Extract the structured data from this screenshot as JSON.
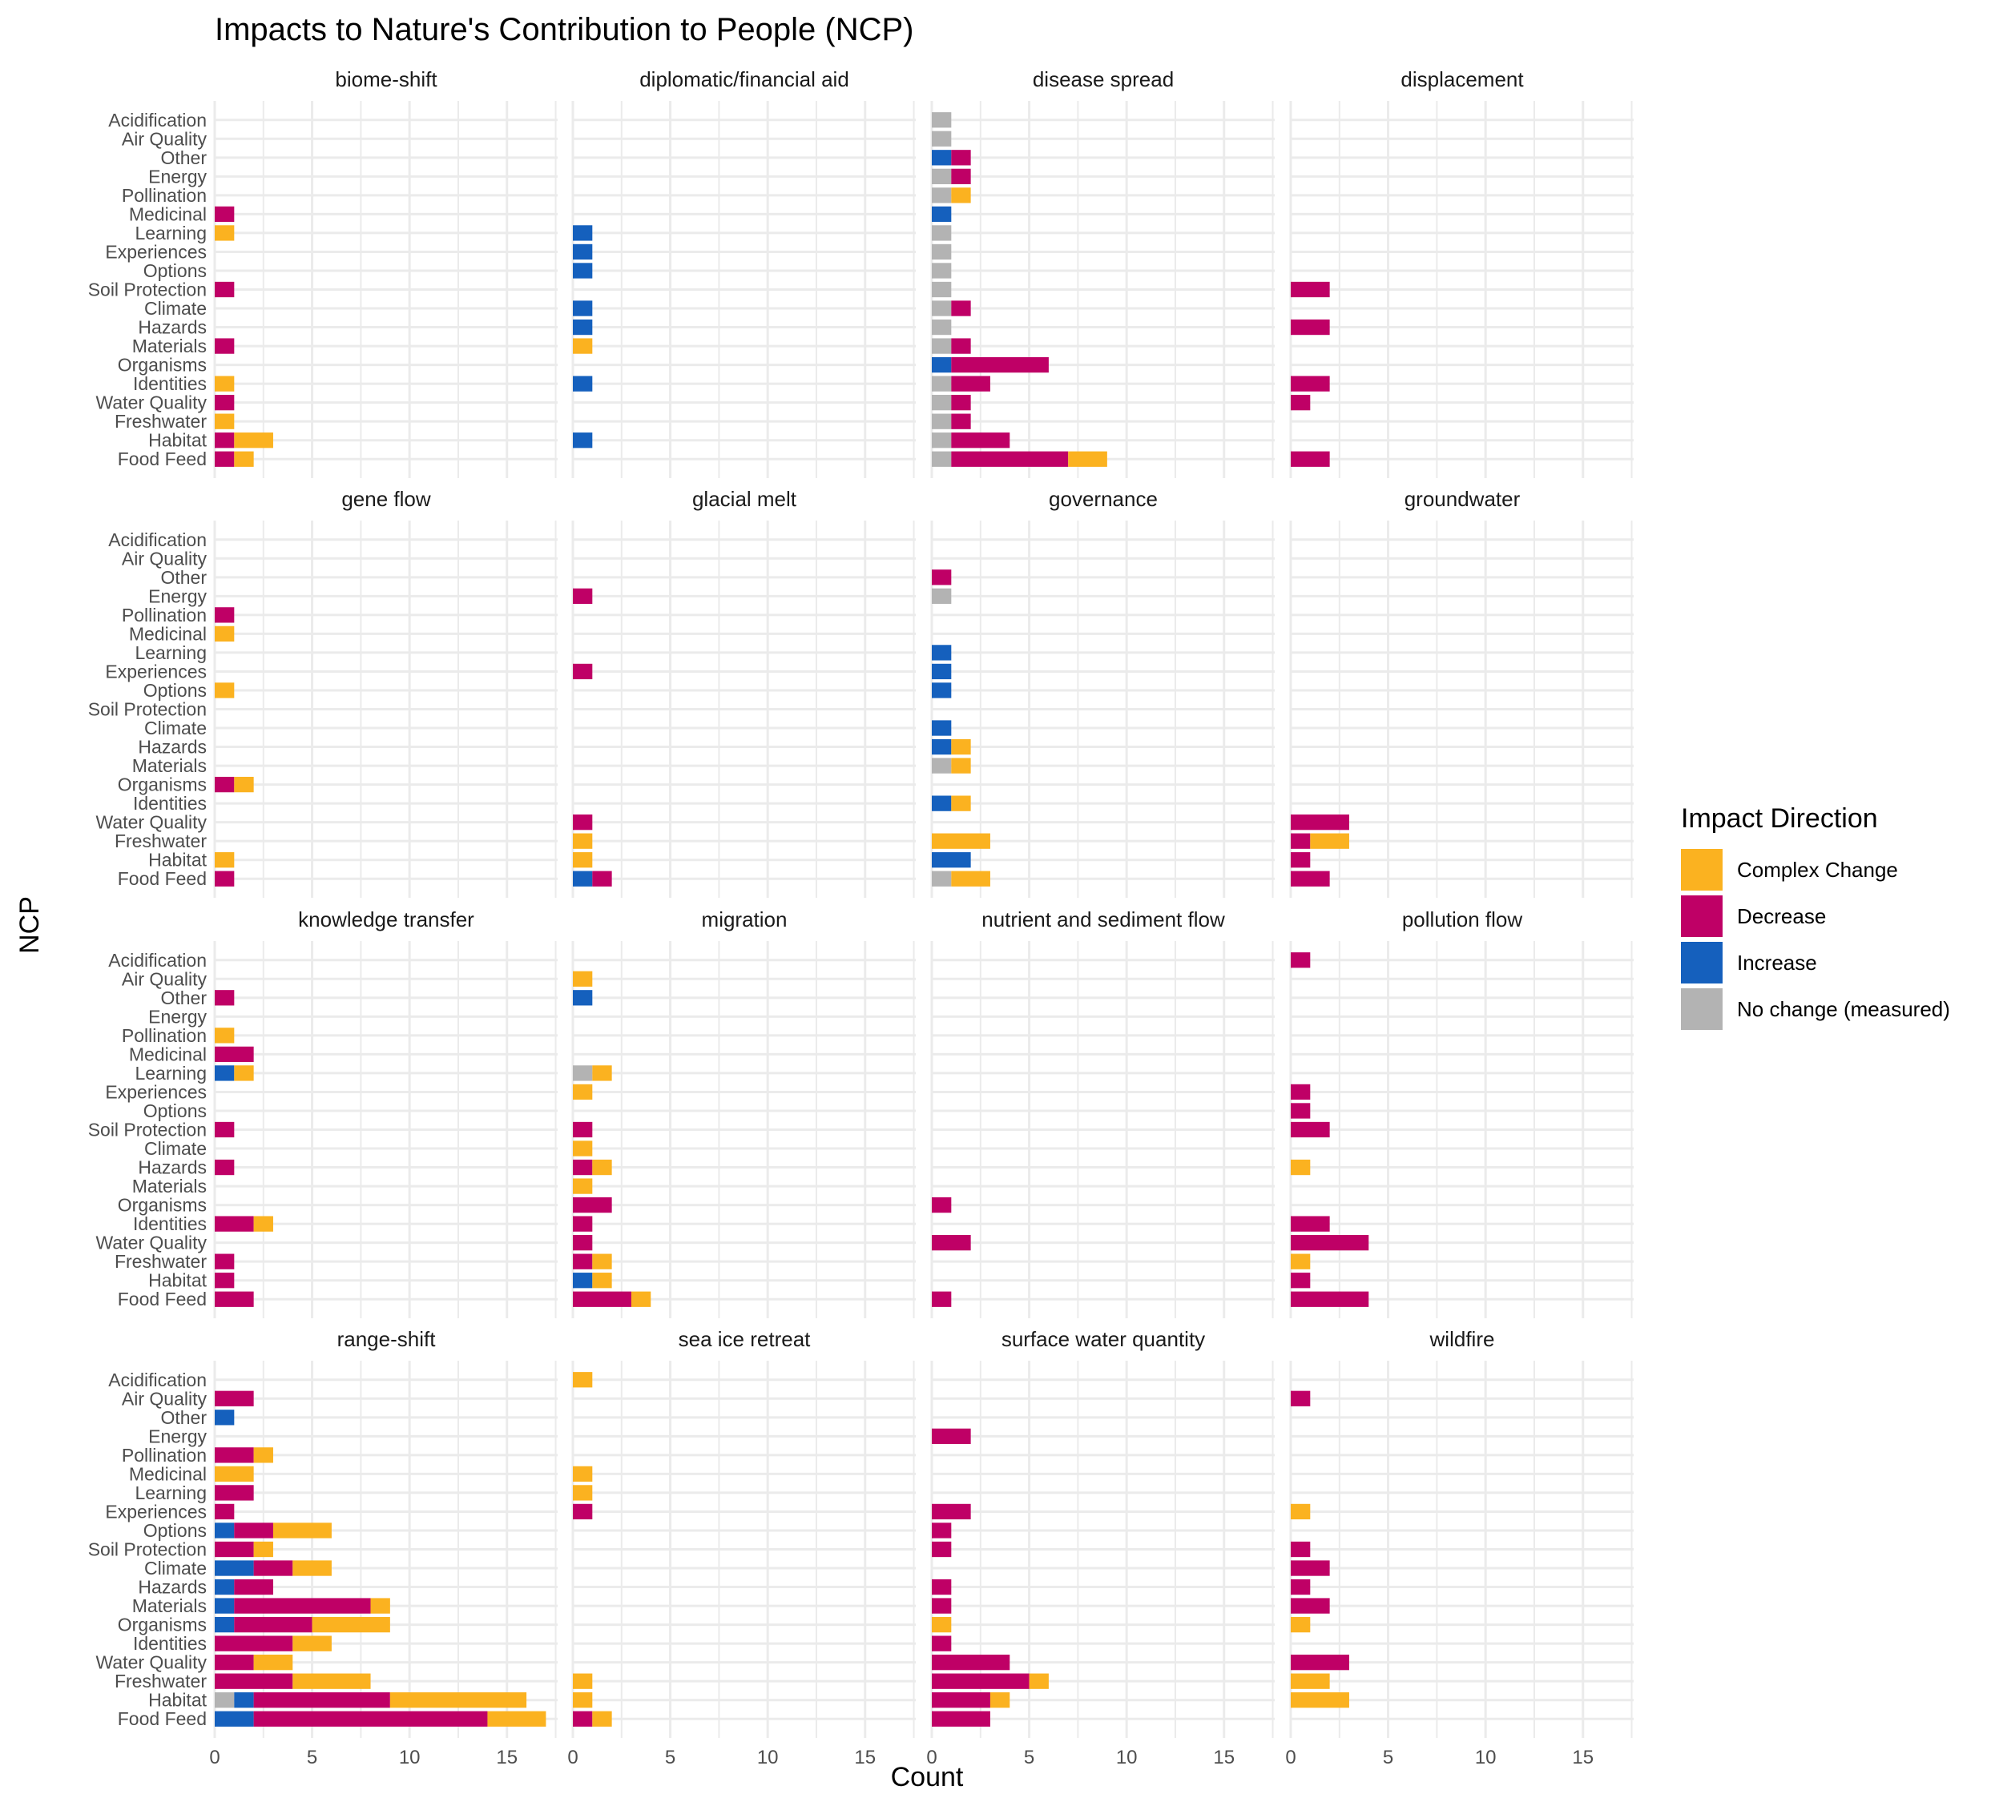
{
  "title": "Impacts to Nature's Contribution to People (NCP)",
  "chart_data": {
    "type": "bar",
    "orientation": "horizontal",
    "stacked": true,
    "faceted": true,
    "title": "Impacts to Nature's Contribution to People (NCP)",
    "xlabel": "Count",
    "ylabel": "NCP",
    "xlim": [
      0,
      17.6
    ],
    "xticks": [
      0,
      5,
      10,
      15
    ],
    "grid": true,
    "legend_position": "right",
    "legend_title": "Impact Direction",
    "categories": [
      "Acidification",
      "Air Quality",
      "Other",
      "Energy",
      "Pollination",
      "Medicinal",
      "Learning",
      "Experiences",
      "Options",
      "Soil Protection",
      "Climate",
      "Hazards",
      "Materials",
      "Organisms",
      "Identities",
      "Water Quality",
      "Freshwater",
      "Habitat",
      "Food Feed"
    ],
    "series": [
      {
        "name": "No change (measured)",
        "color": "#b3b3b3"
      },
      {
        "name": "Increase",
        "color": "#1560bd"
      },
      {
        "name": "Decrease",
        "color": "#bf0066"
      },
      {
        "name": "Complex Change",
        "color": "#fbb220"
      }
    ],
    "legend_order": [
      "Complex Change",
      "Decrease",
      "Increase",
      "No change (measured)"
    ],
    "segment_order": [
      "No change (measured)",
      "Increase",
      "Decrease",
      "Complex Change"
    ],
    "facets": [
      {
        "name": "biome-shift",
        "data": {
          "Medicinal": {
            "Decrease": 1
          },
          "Learning": {
            "Complex Change": 1
          },
          "Soil Protection": {
            "Decrease": 1
          },
          "Materials": {
            "Decrease": 1
          },
          "Identities": {
            "Complex Change": 1
          },
          "Water Quality": {
            "Decrease": 1
          },
          "Freshwater": {
            "Complex Change": 1
          },
          "Habitat": {
            "Decrease": 1,
            "Complex Change": 2
          },
          "Food Feed": {
            "Decrease": 1,
            "Complex Change": 1
          }
        }
      },
      {
        "name": "diplomatic/financial aid",
        "data": {
          "Learning": {
            "Increase": 1
          },
          "Experiences": {
            "Increase": 1
          },
          "Options": {
            "Increase": 1
          },
          "Climate": {
            "Increase": 1
          },
          "Hazards": {
            "Increase": 1
          },
          "Materials": {
            "Complex Change": 1
          },
          "Identities": {
            "Increase": 1
          },
          "Habitat": {
            "Increase": 1
          }
        }
      },
      {
        "name": "disease spread",
        "data": {
          "Acidification": {
            "No change (measured)": 1
          },
          "Air Quality": {
            "No change (measured)": 1
          },
          "Other": {
            "Increase": 1,
            "Decrease": 1
          },
          "Energy": {
            "No change (measured)": 1,
            "Decrease": 1
          },
          "Pollination": {
            "No change (measured)": 1,
            "Complex Change": 1
          },
          "Medicinal": {
            "Increase": 1
          },
          "Learning": {
            "No change (measured)": 1
          },
          "Experiences": {
            "No change (measured)": 1
          },
          "Options": {
            "No change (measured)": 1
          },
          "Soil Protection": {
            "No change (measured)": 1
          },
          "Climate": {
            "No change (measured)": 1,
            "Decrease": 1
          },
          "Hazards": {
            "No change (measured)": 1
          },
          "Materials": {
            "No change (measured)": 1,
            "Decrease": 1
          },
          "Organisms": {
            "Increase": 1,
            "Decrease": 5
          },
          "Identities": {
            "No change (measured)": 1,
            "Decrease": 2
          },
          "Water Quality": {
            "No change (measured)": 1,
            "Decrease": 1
          },
          "Freshwater": {
            "No change (measured)": 1,
            "Decrease": 1
          },
          "Habitat": {
            "No change (measured)": 1,
            "Decrease": 3
          },
          "Food Feed": {
            "No change (measured)": 1,
            "Decrease": 6,
            "Complex Change": 2
          }
        }
      },
      {
        "name": "displacement",
        "data": {
          "Soil Protection": {
            "Decrease": 2
          },
          "Hazards": {
            "Decrease": 2
          },
          "Identities": {
            "Decrease": 2
          },
          "Water Quality": {
            "Decrease": 1
          },
          "Food Feed": {
            "Decrease": 2
          }
        }
      },
      {
        "name": "gene flow",
        "data": {
          "Pollination": {
            "Decrease": 1
          },
          "Medicinal": {
            "Complex Change": 1
          },
          "Options": {
            "Complex Change": 1
          },
          "Organisms": {
            "Decrease": 1,
            "Complex Change": 1
          },
          "Habitat": {
            "Complex Change": 1
          },
          "Food Feed": {
            "Decrease": 1
          }
        }
      },
      {
        "name": "glacial melt",
        "data": {
          "Energy": {
            "Decrease": 1
          },
          "Experiences": {
            "Decrease": 1
          },
          "Water Quality": {
            "Decrease": 1
          },
          "Freshwater": {
            "Complex Change": 1
          },
          "Habitat": {
            "Complex Change": 1
          },
          "Food Feed": {
            "Increase": 1,
            "Decrease": 1
          }
        }
      },
      {
        "name": "governance",
        "data": {
          "Other": {
            "Decrease": 1
          },
          "Energy": {
            "No change (measured)": 1
          },
          "Learning": {
            "Increase": 1
          },
          "Experiences": {
            "Increase": 1
          },
          "Options": {
            "Increase": 1
          },
          "Climate": {
            "Increase": 1
          },
          "Hazards": {
            "Increase": 1,
            "Complex Change": 1
          },
          "Materials": {
            "No change (measured)": 1,
            "Complex Change": 1
          },
          "Identities": {
            "Increase": 1,
            "Complex Change": 1
          },
          "Freshwater": {
            "Complex Change": 3
          },
          "Habitat": {
            "Increase": 2
          },
          "Food Feed": {
            "No change (measured)": 1,
            "Complex Change": 2
          }
        }
      },
      {
        "name": "groundwater",
        "data": {
          "Water Quality": {
            "Decrease": 3
          },
          "Freshwater": {
            "Decrease": 1,
            "Complex Change": 2
          },
          "Habitat": {
            "Decrease": 1
          },
          "Food Feed": {
            "Decrease": 2
          }
        }
      },
      {
        "name": "knowledge transfer",
        "data": {
          "Other": {
            "Decrease": 1
          },
          "Pollination": {
            "Complex Change": 1
          },
          "Medicinal": {
            "Decrease": 2
          },
          "Learning": {
            "Increase": 1,
            "Complex Change": 1
          },
          "Soil Protection": {
            "Decrease": 1
          },
          "Hazards": {
            "Decrease": 1
          },
          "Identities": {
            "Decrease": 2,
            "Complex Change": 1
          },
          "Freshwater": {
            "Decrease": 1
          },
          "Habitat": {
            "Decrease": 1
          },
          "Food Feed": {
            "Decrease": 2
          }
        }
      },
      {
        "name": "migration",
        "data": {
          "Air Quality": {
            "Complex Change": 1
          },
          "Other": {
            "Increase": 1
          },
          "Learning": {
            "No change (measured)": 1,
            "Complex Change": 1
          },
          "Experiences": {
            "Complex Change": 1
          },
          "Soil Protection": {
            "Decrease": 1
          },
          "Climate": {
            "Complex Change": 1
          },
          "Hazards": {
            "Decrease": 1,
            "Complex Change": 1
          },
          "Materials": {
            "Complex Change": 1
          },
          "Organisms": {
            "Decrease": 2
          },
          "Identities": {
            "Decrease": 1
          },
          "Water Quality": {
            "Decrease": 1
          },
          "Freshwater": {
            "Decrease": 1,
            "Complex Change": 1
          },
          "Habitat": {
            "Increase": 1,
            "Complex Change": 1
          },
          "Food Feed": {
            "Decrease": 3,
            "Complex Change": 1
          }
        }
      },
      {
        "name": "nutrient and sediment flow",
        "data": {
          "Organisms": {
            "Decrease": 1
          },
          "Water Quality": {
            "Decrease": 2
          },
          "Food Feed": {
            "Decrease": 1
          }
        }
      },
      {
        "name": "pollution flow",
        "data": {
          "Acidification": {
            "Decrease": 1
          },
          "Experiences": {
            "Decrease": 1
          },
          "Options": {
            "Decrease": 1
          },
          "Soil Protection": {
            "Decrease": 2
          },
          "Hazards": {
            "Complex Change": 1
          },
          "Identities": {
            "Decrease": 2
          },
          "Water Quality": {
            "Decrease": 4
          },
          "Freshwater": {
            "Complex Change": 1
          },
          "Habitat": {
            "Decrease": 1
          },
          "Food Feed": {
            "Decrease": 4
          }
        }
      },
      {
        "name": "range-shift",
        "data": {
          "Air Quality": {
            "Decrease": 2
          },
          "Other": {
            "Increase": 1
          },
          "Pollination": {
            "Decrease": 2,
            "Complex Change": 1
          },
          "Medicinal": {
            "Complex Change": 2
          },
          "Learning": {
            "Decrease": 2
          },
          "Experiences": {
            "Decrease": 1
          },
          "Options": {
            "Increase": 1,
            "Decrease": 2,
            "Complex Change": 3
          },
          "Soil Protection": {
            "Decrease": 2,
            "Complex Change": 1
          },
          "Climate": {
            "Increase": 2,
            "Decrease": 2,
            "Complex Change": 2
          },
          "Hazards": {
            "Increase": 1,
            "Decrease": 2
          },
          "Materials": {
            "Increase": 1,
            "Decrease": 7,
            "Complex Change": 1
          },
          "Organisms": {
            "Increase": 1,
            "Decrease": 4,
            "Complex Change": 4
          },
          "Identities": {
            "Decrease": 4,
            "Complex Change": 2
          },
          "Water Quality": {
            "Decrease": 2,
            "Complex Change": 2
          },
          "Freshwater": {
            "Decrease": 4,
            "Complex Change": 4
          },
          "Habitat": {
            "No change (measured)": 1,
            "Increase": 1,
            "Decrease": 7,
            "Complex Change": 7
          },
          "Food Feed": {
            "Increase": 2,
            "Decrease": 12,
            "Complex Change": 3
          }
        }
      },
      {
        "name": "sea ice retreat",
        "data": {
          "Acidification": {
            "Complex Change": 1
          },
          "Medicinal": {
            "Complex Change": 1
          },
          "Learning": {
            "Complex Change": 1
          },
          "Experiences": {
            "Decrease": 1
          },
          "Freshwater": {
            "Complex Change": 1
          },
          "Habitat": {
            "Complex Change": 1
          },
          "Food Feed": {
            "Decrease": 1,
            "Complex Change": 1
          }
        }
      },
      {
        "name": "surface water quantity",
        "data": {
          "Energy": {
            "Decrease": 2
          },
          "Experiences": {
            "Decrease": 2
          },
          "Options": {
            "Decrease": 1
          },
          "Soil Protection": {
            "Decrease": 1
          },
          "Hazards": {
            "Decrease": 1
          },
          "Materials": {
            "Decrease": 1
          },
          "Organisms": {
            "Complex Change": 1
          },
          "Identities": {
            "Decrease": 1
          },
          "Water Quality": {
            "Decrease": 4
          },
          "Freshwater": {
            "Decrease": 5,
            "Complex Change": 1
          },
          "Habitat": {
            "Decrease": 3,
            "Complex Change": 1
          },
          "Food Feed": {
            "Decrease": 3
          }
        }
      },
      {
        "name": "wildfire",
        "data": {
          "Air Quality": {
            "Decrease": 1
          },
          "Experiences": {
            "Complex Change": 1
          },
          "Soil Protection": {
            "Decrease": 1
          },
          "Climate": {
            "Decrease": 2
          },
          "Hazards": {
            "Decrease": 1
          },
          "Materials": {
            "Decrease": 2
          },
          "Organisms": {
            "Complex Change": 1
          },
          "Water Quality": {
            "Decrease": 3
          },
          "Freshwater": {
            "Complex Change": 2
          },
          "Habitat": {
            "Complex Change": 3
          }
        }
      }
    ]
  }
}
